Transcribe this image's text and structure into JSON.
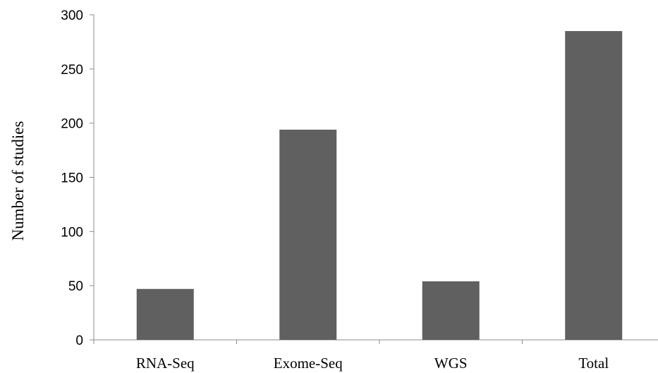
{
  "chart_data": {
    "type": "bar",
    "title": "",
    "xlabel": "",
    "ylabel": "Number of studies",
    "categories": [
      "RNA-Seq",
      "Exome-Seq",
      "WGS",
      "Total"
    ],
    "values": [
      47,
      194,
      54,
      285
    ],
    "ylim": [
      0,
      300
    ],
    "yticks": [
      0,
      50,
      100,
      150,
      200,
      250,
      300
    ],
    "grid": false,
    "legend": "none",
    "bar_color": "#606060"
  }
}
